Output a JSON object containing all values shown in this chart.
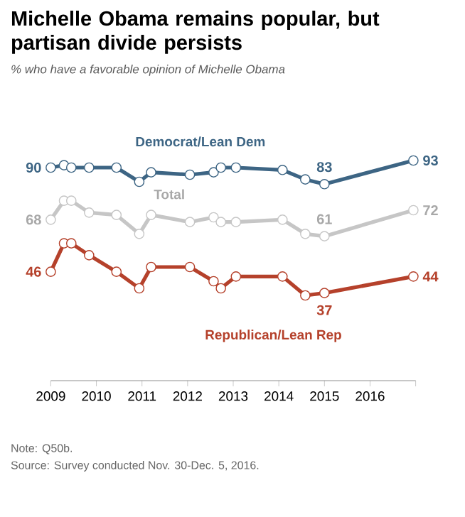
{
  "chart_data": {
    "type": "line",
    "title": "Michelle Obama remains popular, but partisan divide persists",
    "subtitle": "% who have a favorable opinion of Michelle Obama",
    "x": [
      2009.0,
      2009.29,
      2009.45,
      2009.84,
      2010.44,
      2010.94,
      2011.2,
      2012.05,
      2012.57,
      2012.73,
      2013.06,
      2014.08,
      2014.58,
      2015.0,
      2016.95
    ],
    "series": [
      {
        "name": "Democrat/Lean Dem",
        "color": "#3d6584",
        "values": [
          90,
          91,
          90,
          90,
          90,
          84,
          88,
          87,
          88,
          90,
          90,
          89,
          85,
          83,
          93
        ],
        "value_labels": [
          "90",
          null,
          null,
          null,
          null,
          null,
          null,
          null,
          null,
          null,
          null,
          null,
          null,
          "83",
          "93"
        ]
      },
      {
        "name": "Total",
        "color": "#c6c6c6",
        "values": [
          68,
          76,
          76,
          71,
          70,
          62,
          70,
          67,
          69,
          67,
          67,
          68,
          62,
          61,
          72
        ],
        "value_labels": [
          "68",
          null,
          null,
          null,
          null,
          null,
          null,
          null,
          null,
          null,
          null,
          null,
          null,
          "61",
          "72"
        ]
      },
      {
        "name": "Republican/Lean Rep",
        "color": "#b5412b",
        "values": [
          46,
          58,
          58,
          53,
          46,
          39,
          48,
          48,
          42,
          39,
          44,
          44,
          36,
          37,
          44
        ],
        "value_labels": [
          "46",
          null,
          null,
          null,
          null,
          null,
          null,
          null,
          null,
          null,
          null,
          null,
          null,
          "37",
          "44"
        ]
      }
    ],
    "xlim": [
      2009,
      2017
    ],
    "xticks": [
      2009,
      2010,
      2011,
      2012,
      2013,
      2014,
      2015,
      2016,
      {
        "value": 2017,
        "label": null
      }
    ],
    "tick_labels": "x",
    "marker": "circle",
    "line_style": "solid",
    "grid": false,
    "annotations": [
      "Note: Q50b.",
      "Source: Survey conducted Nov. 30-Dec. 5, 2016."
    ]
  }
}
